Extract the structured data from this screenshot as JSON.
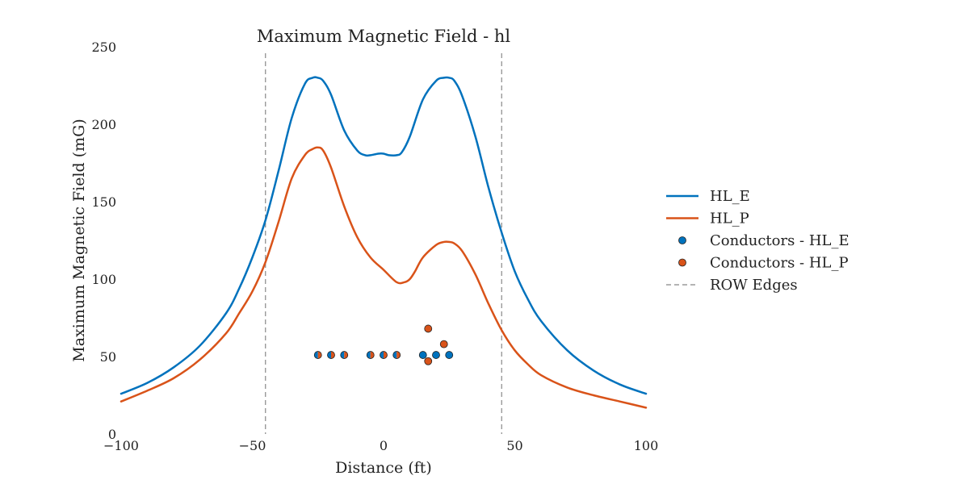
{
  "chart_data": {
    "type": "line",
    "title": "Maximum Magnetic Field - hl",
    "xlabel": "Distance (ft)",
    "ylabel": "Maximum Magnetic Field (mG)",
    "xlim": [
      -100,
      100
    ],
    "ylim": [
      0,
      250
    ],
    "xticks": [
      -100,
      -50,
      0,
      50,
      100
    ],
    "xtick_labels": [
      "−100",
      "−50",
      "0",
      "50",
      "100"
    ],
    "yticks": [
      0,
      50,
      100,
      150,
      200,
      250
    ],
    "ytick_labels": [
      "0",
      "50",
      "100",
      "150",
      "200",
      "250"
    ],
    "grid": false,
    "legend_position": "right",
    "series": [
      {
        "name": "HL_E",
        "kind": "line",
        "color": "#0072bd",
        "x": [
          -100,
          -90,
          -80,
          -70,
          -60,
          -55,
          -50,
          -45,
          -40,
          -35,
          -30,
          -27,
          -25,
          -23,
          -20,
          -15,
          -10,
          -7,
          -5,
          -2,
          0,
          2,
          5,
          7,
          10,
          15,
          20,
          23,
          25,
          27,
          30,
          35,
          40,
          45,
          50,
          55,
          60,
          70,
          80,
          90,
          100
        ],
        "y": [
          26,
          33,
          43,
          57,
          78,
          94,
          114,
          138,
          170,
          204,
          226,
          230,
          230,
          228,
          219,
          196,
          183,
          180,
          180,
          181,
          181,
          180,
          180,
          182,
          192,
          216,
          228,
          230,
          230,
          228,
          218,
          192,
          159,
          130,
          105,
          87,
          73,
          54,
          41,
          32,
          26
        ]
      },
      {
        "name": "HL_P",
        "kind": "line",
        "color": "#d95319",
        "x": [
          -100,
          -90,
          -80,
          -70,
          -60,
          -55,
          -50,
          -45,
          -40,
          -35,
          -30,
          -27,
          -25,
          -23,
          -20,
          -15,
          -10,
          -5,
          0,
          5,
          8,
          10,
          12,
          15,
          20,
          23,
          25,
          27,
          30,
          35,
          40,
          45,
          50,
          55,
          60,
          70,
          80,
          90,
          100
        ],
        "y": [
          21,
          28,
          36,
          48,
          65,
          78,
          92,
          111,
          137,
          165,
          180,
          184,
          185,
          183,
          172,
          147,
          127,
          114,
          106,
          98,
          98,
          100,
          105,
          114,
          122,
          124,
          124,
          123,
          118,
          103,
          84,
          67,
          54,
          45,
          38,
          30,
          25,
          21,
          17
        ]
      },
      {
        "name": "Conductors - HL_E",
        "kind": "scatter",
        "color": "#0072bd",
        "x": [
          -25,
          -20,
          -15,
          -5,
          0,
          5,
          15,
          20,
          25
        ],
        "y": [
          51,
          51,
          51,
          51,
          51,
          51,
          51,
          51,
          51
        ]
      },
      {
        "name": "Conductors - HL_P",
        "kind": "scatter",
        "color": "#d95319",
        "x": [
          -25,
          -20,
          -15,
          -5,
          0,
          5,
          17,
          17,
          23
        ],
        "y": [
          51,
          51,
          51,
          51,
          51,
          51,
          68,
          47,
          58
        ]
      },
      {
        "name": "ROW Edges",
        "kind": "vline",
        "color": "#888888",
        "x": [
          -45,
          45
        ]
      }
    ]
  }
}
